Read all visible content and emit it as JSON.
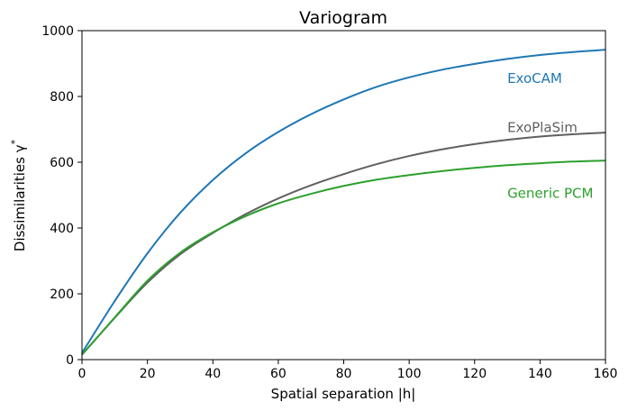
{
  "chart_data": {
    "type": "line",
    "title": "Variogram",
    "xlabel": "Spatial separation |h|",
    "ylabel_main": "Dissimilarities γ",
    "ylabel_sup": "*",
    "xlim": [
      0,
      160
    ],
    "ylim": [
      0,
      1000
    ],
    "xticks": [
      "0",
      "20",
      "40",
      "60",
      "80",
      "100",
      "120",
      "140",
      "160"
    ],
    "yticks": [
      "0",
      "200",
      "400",
      "600",
      "800",
      "1000"
    ],
    "grid": false,
    "legend": "inline labels at right",
    "series": [
      {
        "name": "ExoCAM",
        "color": "#1f77b4",
        "x": [
          0,
          10,
          20,
          30,
          40,
          50,
          60,
          70,
          80,
          90,
          100,
          110,
          120,
          130,
          140,
          150,
          160
        ],
        "y": [
          20,
          178,
          323,
          446,
          546,
          627,
          692,
          746,
          791,
          829,
          858,
          881,
          899,
          914,
          926,
          935,
          942
        ]
      },
      {
        "name": "ExoPlaSim",
        "color": "#606060",
        "x": [
          0,
          10,
          20,
          30,
          40,
          50,
          60,
          70,
          80,
          90,
          100,
          110,
          120,
          130,
          140,
          150,
          160
        ],
        "y": [
          15,
          127,
          234,
          320,
          385,
          442,
          490,
          530,
          564,
          594,
          619,
          639,
          655,
          668,
          678,
          685,
          690
        ]
      },
      {
        "name": "Generic PCM",
        "color": "#2ca02c",
        "x": [
          0,
          10,
          20,
          30,
          40,
          50,
          60,
          70,
          80,
          90,
          100,
          110,
          120,
          130,
          140,
          150,
          160
        ],
        "y": [
          15,
          128,
          240,
          325,
          387,
          436,
          475,
          504,
          528,
          547,
          561,
          573,
          583,
          591,
          597,
          602,
          605
        ]
      }
    ]
  }
}
